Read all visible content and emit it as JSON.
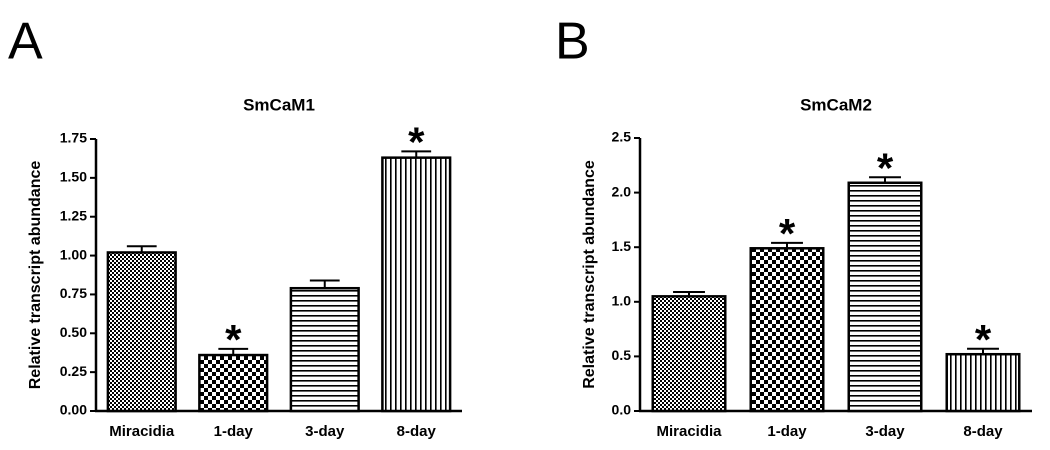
{
  "chart_data": [
    {
      "type": "bar",
      "panel_label": "A",
      "title": "SmCaM1",
      "y_label": "Relative transcript abundance",
      "categories": [
        "Miracidia",
        "1-day",
        "3-day",
        "8-day"
      ],
      "values": [
        1.02,
        0.36,
        0.79,
        1.63
      ],
      "errors": [
        0.04,
        0.04,
        0.05,
        0.04
      ],
      "significance": [
        null,
        "*",
        null,
        "*"
      ],
      "color": "#000000",
      "ylim": [
        0,
        1.75
      ],
      "yticks": [
        {
          "value": 0,
          "label": "0.00"
        },
        0.25,
        {
          "value": 0.5,
          "label": "0.50"
        },
        0.75,
        {
          "value": 1,
          "label": "1.00"
        },
        1.25,
        {
          "value": 1.5,
          "label": "1.50"
        },
        1.75
      ]
    },
    {
      "type": "bar",
      "panel_label": "B",
      "title": "SmCaM2",
      "y_label": "Relative transcript abundance",
      "categories": [
        "Miracidia",
        "1-day",
        "3-day",
        "8-day"
      ],
      "values": [
        1.05,
        1.49,
        2.09,
        0.52
      ],
      "errors": [
        0.04,
        0.05,
        0.05,
        0.05
      ],
      "significance": [
        null,
        "*",
        "*",
        "*"
      ],
      "color": "#000000",
      "ylim": [
        0,
        2.5
      ],
      "yticks": [
        {
          "value": 0,
          "label": "0.0"
        },
        0.5,
        {
          "value": 1,
          "label": "1.0"
        },
        1.5,
        {
          "value": 2,
          "label": "2.0"
        },
        2.5
      ]
    }
  ]
}
